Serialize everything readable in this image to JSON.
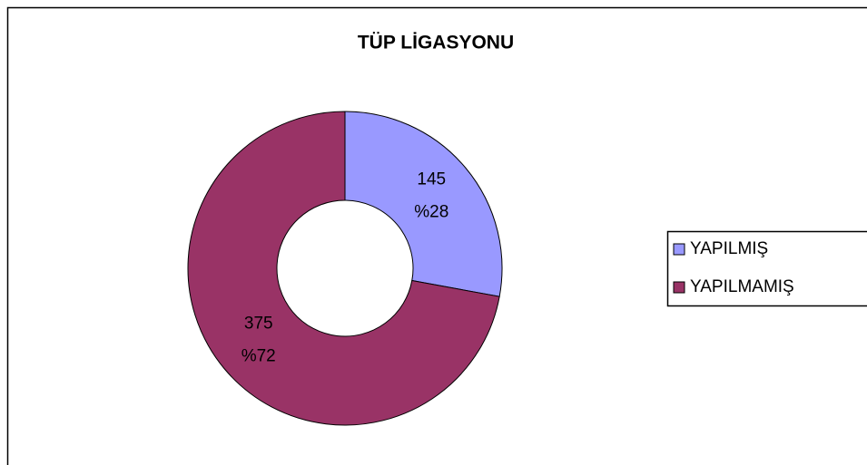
{
  "chart_data": {
    "type": "donut",
    "title": "TÜP LİGASYONU",
    "categories": [
      "YAPILMIŞ",
      "YAPILMAMIŞ"
    ],
    "values": [
      145,
      375
    ],
    "percentages": [
      28,
      72
    ],
    "percentage_labels": [
      "%28",
      "%72"
    ],
    "colors": [
      "#9999ff",
      "#993366"
    ],
    "legend": "right"
  }
}
